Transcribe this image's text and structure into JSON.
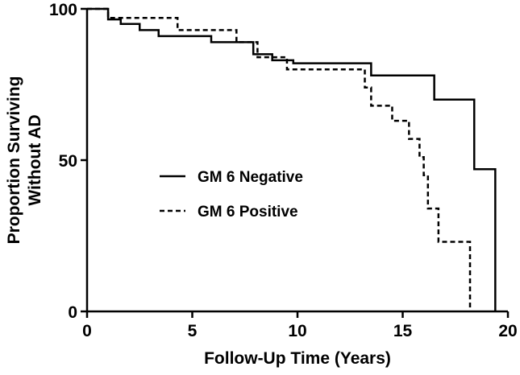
{
  "chart_data": {
    "type": "line",
    "title": "",
    "xlabel": "Follow-Up Time (Years)",
    "ylabel_lines": [
      "Proportion Surviving",
      "Without AD"
    ],
    "xlim": [
      0,
      20
    ],
    "ylim": [
      0,
      100
    ],
    "xticks": [
      0,
      5,
      10,
      15,
      20
    ],
    "xtick_labels": [
      "0",
      "5",
      "10",
      "15",
      "20"
    ],
    "yticks": [
      0,
      50,
      100
    ],
    "ytick_labels": [
      "0",
      "50",
      "100"
    ],
    "grid": false,
    "legend_position": "center-left",
    "series": [
      {
        "name": "GM 6 Negative",
        "style": "solid",
        "x": [
          0,
          1.0,
          1.6,
          2.5,
          3.4,
          5.9,
          7.9,
          8.8,
          9.8,
          13.5,
          16.5,
          18.4,
          19.4
        ],
        "y": [
          100,
          96.5,
          95,
          93,
          91,
          89,
          85,
          83,
          82,
          78,
          70,
          47,
          0
        ]
      },
      {
        "name": "GM 6 Positive",
        "style": "dashed",
        "x": [
          0,
          1.0,
          4.3,
          7.1,
          8.1,
          9.5,
          13.2,
          13.5,
          14.5,
          15.3,
          15.8,
          16.0,
          16.2,
          16.7,
          18.2
        ],
        "y": [
          100,
          97,
          93,
          89,
          84,
          80,
          74,
          68,
          63,
          57,
          51,
          45,
          34,
          23,
          0
        ]
      }
    ]
  }
}
